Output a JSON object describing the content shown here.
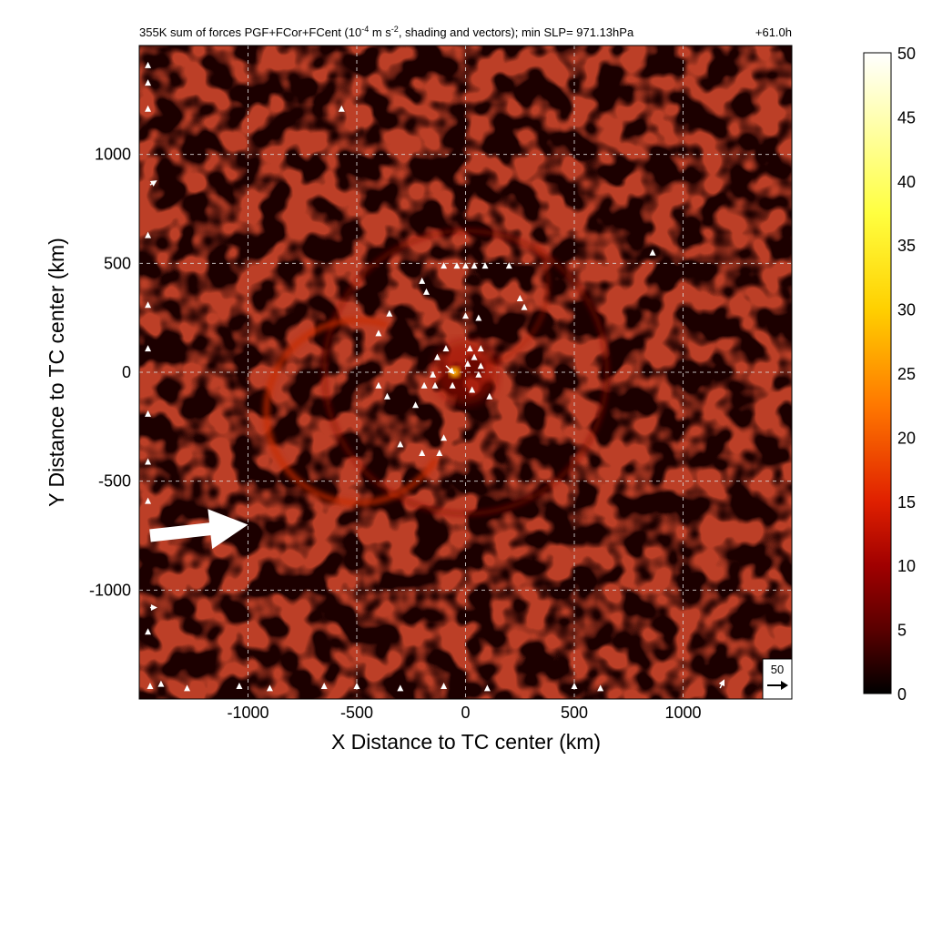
{
  "chart_data": {
    "type": "heatmap",
    "title": {
      "main": "355K sum of forces PGF+FCor+FCent (10",
      "exp1": "-4",
      "mid": " m s",
      "exp2": "-2",
      "tail": ", shading and vectors); min SLP= 971.13hPa"
    },
    "time_label": "+61.0h",
    "xlabel": "X Distance to TC center (km)",
    "ylabel": "Y Distance to TC center (km)",
    "xlim": [
      -1500,
      1500
    ],
    "ylim": [
      -1500,
      1500
    ],
    "xticks": [
      -1000,
      -500,
      0,
      500,
      1000
    ],
    "xtick_labels": [
      "-1000",
      "-500",
      "0",
      "500",
      "1000"
    ],
    "yticks": [
      -1000,
      -500,
      0,
      500,
      1000
    ],
    "ytick_labels": [
      "-1000",
      "-500",
      "0",
      "500",
      "1000"
    ],
    "grid": true,
    "colorbar": {
      "range": [
        0,
        50
      ],
      "ticks": [
        0,
        5,
        10,
        15,
        20,
        25,
        30,
        35,
        40,
        45,
        50
      ],
      "tick_labels": [
        "0",
        "5",
        "10",
        "15",
        "20",
        "25",
        "30",
        "35",
        "40",
        "45",
        "50"
      ],
      "colormap": [
        "#000000",
        "#5a0000",
        "#a00000",
        "#e02000",
        "#ff7800",
        "#ffd000",
        "#ffff40",
        "#ffffff"
      ]
    },
    "reference_vector": {
      "label": "50",
      "value": 50
    },
    "features": {
      "core_max": {
        "x": -50,
        "y": 0,
        "value": 35
      },
      "spiral_band_radius_km": 420,
      "outer_ring_radius_km": 650
    },
    "large_vector": {
      "x": -1450,
      "y": -750,
      "u": 45,
      "v": 5
    },
    "vectors": [
      {
        "x": -100,
        "y": 480,
        "u": 0,
        "v": 4
      },
      {
        "x": -40,
        "y": 480,
        "u": 0,
        "v": 4
      },
      {
        "x": 0,
        "y": 480,
        "u": 0,
        "v": 4
      },
      {
        "x": 40,
        "y": 480,
        "u": 0,
        "v": 4
      },
      {
        "x": 90,
        "y": 480,
        "u": 0,
        "v": 4
      },
      {
        "x": 200,
        "y": 480,
        "u": 0,
        "v": 4
      },
      {
        "x": -200,
        "y": 410,
        "u": 0,
        "v": 4
      },
      {
        "x": -180,
        "y": 360,
        "u": 0,
        "v": 4
      },
      {
        "x": 250,
        "y": 330,
        "u": 0,
        "v": 4
      },
      {
        "x": 270,
        "y": 290,
        "u": 0,
        "v": 4
      },
      {
        "x": -350,
        "y": 260,
        "u": 0,
        "v": 4
      },
      {
        "x": 0,
        "y": 250,
        "u": 0,
        "v": 4
      },
      {
        "x": 60,
        "y": 240,
        "u": 0,
        "v": 4
      },
      {
        "x": -400,
        "y": 170,
        "u": 0,
        "v": 4
      },
      {
        "x": -90,
        "y": 100,
        "u": 0,
        "v": 4
      },
      {
        "x": 20,
        "y": 100,
        "u": 0,
        "v": 4
      },
      {
        "x": 70,
        "y": 100,
        "u": 0,
        "v": 4
      },
      {
        "x": -130,
        "y": 60,
        "u": 0,
        "v": 4
      },
      {
        "x": 40,
        "y": 60,
        "u": 0,
        "v": 4
      },
      {
        "x": -90,
        "y": 30,
        "u": 8,
        "v": -8
      },
      {
        "x": 10,
        "y": 30,
        "u": 0,
        "v": 4
      },
      {
        "x": 70,
        "y": 20,
        "u": 0,
        "v": 4
      },
      {
        "x": -150,
        "y": -20,
        "u": 0,
        "v": 4
      },
      {
        "x": 60,
        "y": -20,
        "u": 0,
        "v": 4
      },
      {
        "x": -400,
        "y": -70,
        "u": 0,
        "v": 4
      },
      {
        "x": -190,
        "y": -70,
        "u": 0,
        "v": 4
      },
      {
        "x": -140,
        "y": -70,
        "u": 0,
        "v": 4
      },
      {
        "x": -60,
        "y": -70,
        "u": 0,
        "v": 4
      },
      {
        "x": 30,
        "y": -90,
        "u": 0,
        "v": 4
      },
      {
        "x": -360,
        "y": -120,
        "u": 0,
        "v": 4
      },
      {
        "x": 110,
        "y": -120,
        "u": 0,
        "v": 4
      },
      {
        "x": -230,
        "y": -160,
        "u": 0,
        "v": 4
      },
      {
        "x": -100,
        "y": -310,
        "u": 0,
        "v": 4
      },
      {
        "x": -300,
        "y": -340,
        "u": 0,
        "v": 4
      },
      {
        "x": -200,
        "y": -380,
        "u": 0,
        "v": 4
      },
      {
        "x": -120,
        "y": -380,
        "u": 0,
        "v": 4
      },
      {
        "x": -1460,
        "y": 1400,
        "u": 0,
        "v": 4
      },
      {
        "x": -1460,
        "y": 1320,
        "u": 0,
        "v": 4
      },
      {
        "x": -1460,
        "y": 1200,
        "u": 0,
        "v": 4
      },
      {
        "x": -1450,
        "y": 860,
        "u": 6,
        "v": 4
      },
      {
        "x": -1460,
        "y": 620,
        "u": 0,
        "v": 4
      },
      {
        "x": -1460,
        "y": 300,
        "u": 0,
        "v": 4
      },
      {
        "x": -1460,
        "y": 100,
        "u": 0,
        "v": 4
      },
      {
        "x": -1460,
        "y": -200,
        "u": 0,
        "v": 4
      },
      {
        "x": -1460,
        "y": -420,
        "u": 0,
        "v": 4
      },
      {
        "x": -1460,
        "y": -600,
        "u": 0,
        "v": 4
      },
      {
        "x": -1450,
        "y": -1080,
        "u": 6,
        "v": 0
      },
      {
        "x": -1460,
        "y": -1200,
        "u": 0,
        "v": 4
      },
      {
        "x": -1450,
        "y": -1450,
        "u": 0,
        "v": 4
      },
      {
        "x": -1400,
        "y": -1440,
        "u": 0,
        "v": 4
      },
      {
        "x": -1280,
        "y": -1460,
        "u": 0,
        "v": 4
      },
      {
        "x": -1040,
        "y": -1450,
        "u": 0,
        "v": 4
      },
      {
        "x": -900,
        "y": -1460,
        "u": 0,
        "v": 4
      },
      {
        "x": -650,
        "y": -1450,
        "u": 0,
        "v": 4
      },
      {
        "x": -500,
        "y": -1450,
        "u": 0,
        "v": 4
      },
      {
        "x": -300,
        "y": -1460,
        "u": 0,
        "v": 4
      },
      {
        "x": -100,
        "y": -1450,
        "u": 0,
        "v": 4
      },
      {
        "x": 100,
        "y": -1460,
        "u": 0,
        "v": 4
      },
      {
        "x": 500,
        "y": -1450,
        "u": 0,
        "v": 4
      },
      {
        "x": 620,
        "y": -1460,
        "u": 0,
        "v": 4
      },
      {
        "x": 1170,
        "y": -1450,
        "u": 4,
        "v": 8
      },
      {
        "x": -570,
        "y": 1200,
        "u": 0,
        "v": 4
      },
      {
        "x": 860,
        "y": 540,
        "u": 0,
        "v": 4
      }
    ]
  }
}
